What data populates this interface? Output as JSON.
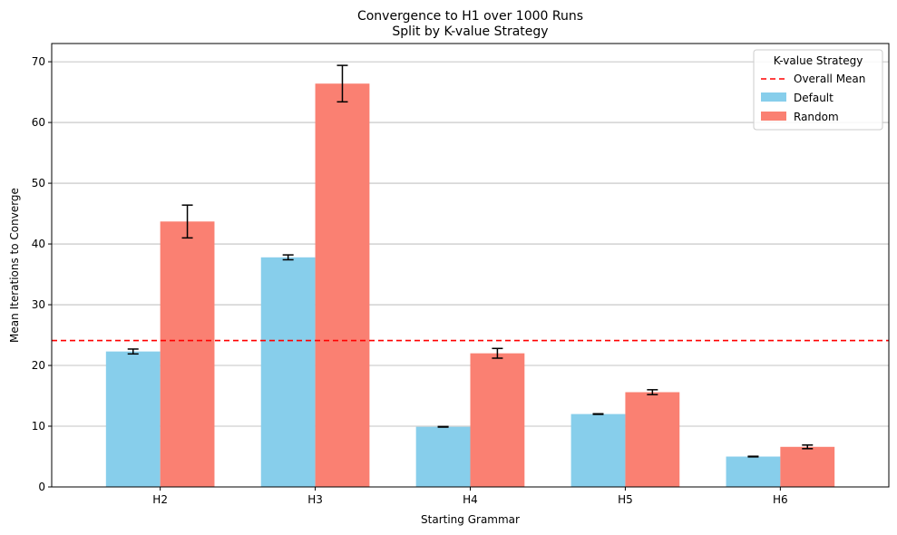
{
  "chart_data": {
    "type": "bar",
    "title": "Convergence to H1 over 1000 Runs",
    "subtitle": "Split by K-value Strategy",
    "xlabel": "Starting Grammar",
    "ylabel": "Mean Iterations to Converge",
    "categories": [
      "H2",
      "H3",
      "H4",
      "H5",
      "H6"
    ],
    "ylim": [
      0,
      73
    ],
    "yticks": [
      0,
      10,
      20,
      30,
      40,
      50,
      60,
      70
    ],
    "grid": "y",
    "series": [
      {
        "name": "Default",
        "color": "#87ceeb",
        "values": [
          22.3,
          37.8,
          9.9,
          12.0,
          5.0
        ],
        "errors": [
          0.4,
          0.4,
          0.05,
          0.05,
          0.05
        ]
      },
      {
        "name": "Random",
        "color": "#fa8072",
        "values": [
          43.7,
          66.4,
          22.0,
          15.6,
          6.6
        ],
        "errors": [
          2.7,
          3.0,
          0.8,
          0.4,
          0.3
        ]
      }
    ],
    "reference_line": {
      "name": "Overall Mean",
      "value": 24.1,
      "color": "#ff0000",
      "style": "dashed"
    },
    "legend": {
      "title": "K-value Strategy",
      "placement": "top-right"
    }
  }
}
